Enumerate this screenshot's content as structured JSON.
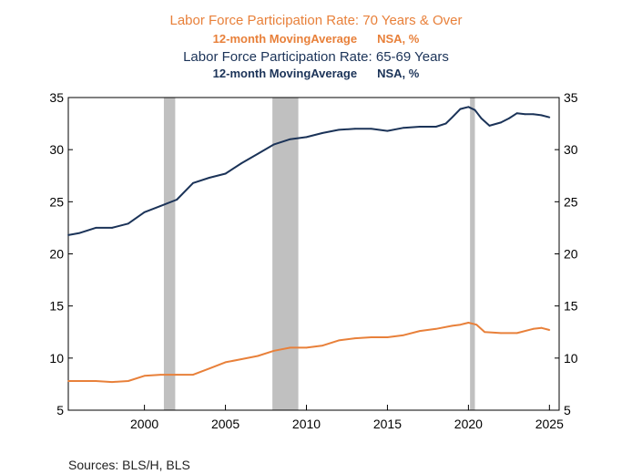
{
  "header": {
    "title1": "Labor Force Participation Rate: 70 Years & Over",
    "sub1_left": "12-month MovingAverage",
    "sub1_right": "NSA, %",
    "title2": "Labor Force Participation Rate: 65-69 Years",
    "sub2_left": "12-month MovingAverage",
    "sub2_right": "NSA, %"
  },
  "footer": {
    "sources": "Sources:  BLS/H, BLS"
  },
  "colors": {
    "orange": "#E8803A",
    "navy": "#1B3358",
    "recession": "#C0C0C0",
    "axis": "#000000"
  },
  "chart_data": {
    "type": "line",
    "xlim": [
      1995.3,
      2025.6
    ],
    "ylim": [
      5,
      35
    ],
    "yticks": [
      5,
      10,
      15,
      20,
      25,
      30,
      35
    ],
    "xticks": [
      2000,
      2005,
      2010,
      2015,
      2020,
      2025
    ],
    "left_axis_labels": [
      "5",
      "10",
      "15",
      "20",
      "25",
      "30",
      "35"
    ],
    "right_axis_labels": [
      "5",
      "10",
      "15",
      "20",
      "25",
      "30",
      "35"
    ],
    "x_labels": [
      "2000",
      "2005",
      "2010",
      "2015",
      "2020",
      "2025"
    ],
    "recessions": [
      [
        2001.2,
        2001.9
      ],
      [
        2007.9,
        2009.5
      ],
      [
        2020.1,
        2020.4
      ]
    ],
    "series": [
      {
        "name": "Labor Force Participation Rate: 70 Years & Over",
        "color": "orange",
        "x": [
          1995.3,
          1996,
          1997,
          1998,
          1999,
          2000,
          2001,
          2002,
          2003,
          2004,
          2005,
          2006,
          2007,
          2008,
          2009,
          2010,
          2011,
          2012,
          2013,
          2014,
          2015,
          2016,
          2017,
          2018,
          2019,
          2019.5,
          2020,
          2020.5,
          2021,
          2022,
          2023,
          2024,
          2024.5,
          2025
        ],
        "values": [
          7.8,
          7.8,
          7.8,
          7.7,
          7.8,
          8.3,
          8.4,
          8.4,
          8.4,
          9.0,
          9.6,
          9.9,
          10.2,
          10.7,
          11.0,
          11.0,
          11.2,
          11.7,
          11.9,
          12.0,
          12.0,
          12.2,
          12.6,
          12.8,
          13.1,
          13.2,
          13.4,
          13.2,
          12.5,
          12.4,
          12.4,
          12.8,
          12.9,
          12.7
        ]
      },
      {
        "name": "Labor Force Participation Rate: 65-69 Years",
        "color": "navy",
        "x": [
          1995.3,
          1996,
          1997,
          1998,
          1999,
          2000,
          2001,
          2002,
          2003,
          2004,
          2005,
          2006,
          2007,
          2008,
          2009,
          2010,
          2011,
          2012,
          2013,
          2014,
          2015,
          2016,
          2017,
          2018,
          2018.6,
          2019,
          2019.5,
          2020,
          2020.4,
          2020.8,
          2021.3,
          2022,
          2022.5,
          2023,
          2023.5,
          2024,
          2024.5,
          2025
        ],
        "values": [
          21.8,
          22.0,
          22.5,
          22.5,
          22.9,
          24.0,
          24.6,
          25.2,
          26.8,
          27.3,
          27.7,
          28.7,
          29.6,
          30.5,
          31.0,
          31.2,
          31.6,
          31.9,
          32.0,
          32.0,
          31.8,
          32.1,
          32.2,
          32.2,
          32.5,
          33.1,
          33.9,
          34.1,
          33.8,
          33.0,
          32.3,
          32.6,
          33.0,
          33.5,
          33.4,
          33.4,
          33.3,
          33.1
        ]
      }
    ]
  }
}
